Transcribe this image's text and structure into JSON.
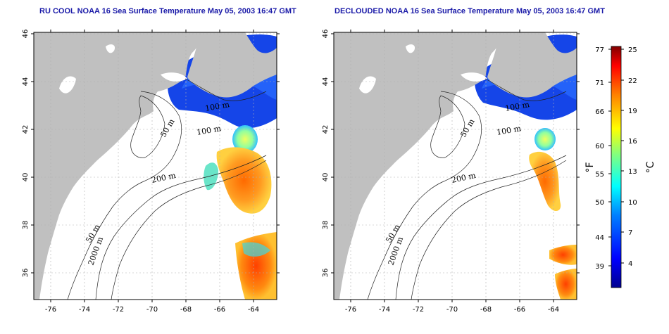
{
  "panels": [
    {
      "id": "left",
      "title": "RU COOL NOAA 16 Sea Surface Temperature May 05, 2003 16:47 GMT",
      "contour_labels": [
        "100 m",
        "100 m",
        "50 m",
        "200 m",
        "50 m",
        "2000 m"
      ]
    },
    {
      "id": "right",
      "title": "DECLOUDED NOAA 16 Sea Surface Temperature May 05, 2003 16:47 GMT",
      "contour_labels": [
        "100 m",
        "100 m",
        "50 m",
        "200 m",
        "50 m",
        "2000 m"
      ]
    }
  ],
  "x_ticks": [
    "-76",
    "-74",
    "-72",
    "-70",
    "-68",
    "-66",
    "-64"
  ],
  "y_ticks": [
    "46",
    "44",
    "42",
    "40",
    "38",
    "36"
  ],
  "colorbar": {
    "fahrenheit_ticks": [
      "77",
      "71",
      "66",
      "60",
      "55",
      "50",
      "44",
      "39"
    ],
    "celsius_ticks": [
      "25",
      "22",
      "19",
      "16",
      "13",
      "10",
      "7",
      "4"
    ],
    "fahrenheit_unit": "°F",
    "celsius_unit": "°C",
    "range_c": [
      1,
      25
    ],
    "colors": [
      "#00008f",
      "#0000ff",
      "#0080ff",
      "#00ffff",
      "#80ff80",
      "#ffff00",
      "#ff8000",
      "#ff0000",
      "#800000"
    ]
  },
  "colors": {
    "land": "#c0c0c0",
    "title": "#1a1aa8",
    "grid": "#b0b0b0"
  }
}
